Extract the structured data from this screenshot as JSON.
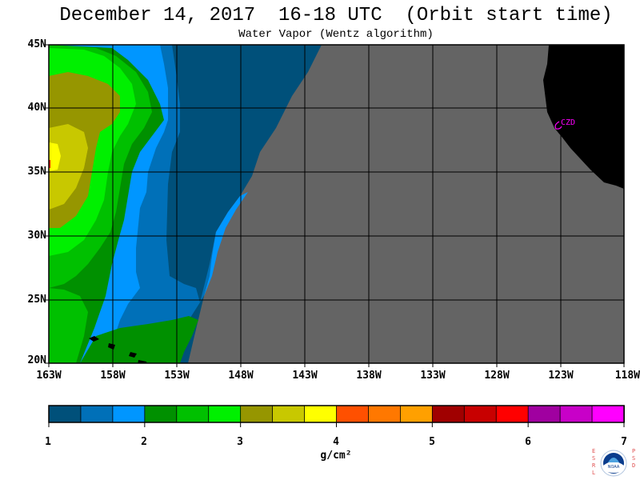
{
  "header": {
    "title": "December 14, 2017  16-18 UTC  (Orbit start time)",
    "subtitle": "Water Vapor (Wentz algorithm)"
  },
  "map": {
    "lat_labels": [
      "45N",
      "40N",
      "35N",
      "30N",
      "25N",
      "20N"
    ],
    "lon_labels": [
      "163W",
      "158W",
      "153W",
      "148W",
      "143W",
      "138W",
      "133W",
      "128W",
      "123W",
      "118W"
    ],
    "station_label": "CZD",
    "colors": {
      "no_data": "#646464",
      "land": "#000000",
      "grid": "#000000",
      "station": "#ff00ff"
    }
  },
  "colorbar": {
    "tick_labels": [
      "1",
      "2",
      "3",
      "4",
      "5",
      "6",
      "7"
    ],
    "units": "g/cm²",
    "colors": [
      "#00507a",
      "#0070b8",
      "#0096ff",
      "#009000",
      "#00c000",
      "#00f000",
      "#969600",
      "#c8c800",
      "#ffff00",
      "#ff5000",
      "#ff7800",
      "#ffa000",
      "#a00000",
      "#c80000",
      "#ff0000",
      "#a000a0",
      "#c800c8",
      "#ff00ff"
    ]
  },
  "logo": {
    "left_letters": "ESRL",
    "right_letters": "PSD",
    "center": "NOAA"
  }
}
